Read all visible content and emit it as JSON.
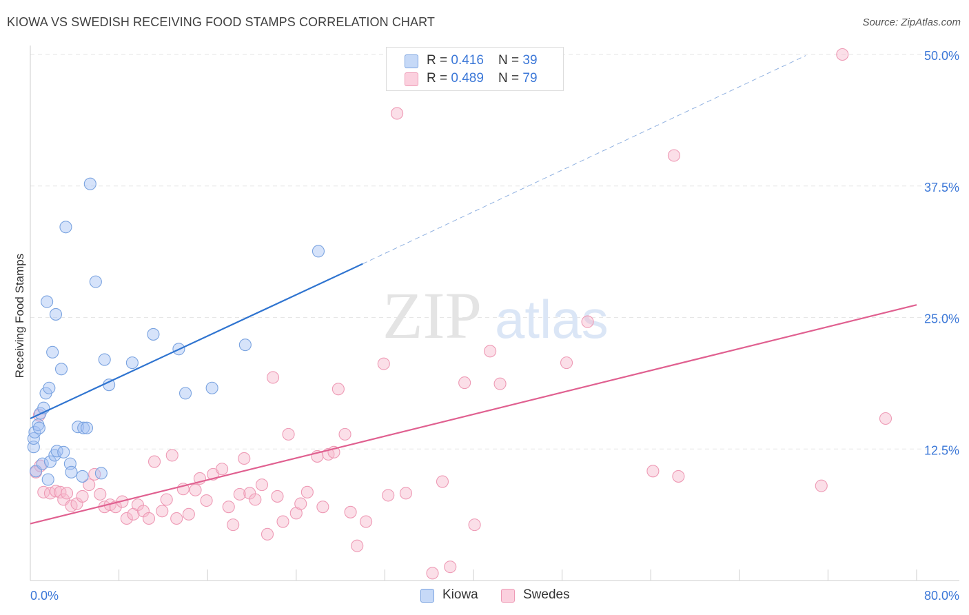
{
  "title": "KIOWA VS SWEDISH RECEIVING FOOD STAMPS CORRELATION CHART",
  "source": "Source: ZipAtlas.com",
  "watermark": {
    "zip": "ZIP",
    "atlas": "atlas"
  },
  "legend": {
    "rows": [
      {
        "r_label": "R = ",
        "r_value": "0.416",
        "n_label": "N = ",
        "n_value": "39"
      },
      {
        "r_label": "R = ",
        "r_value": "0.489",
        "n_label": "N = ",
        "n_value": "79"
      }
    ]
  },
  "bottom_legend": [
    {
      "label": "Kiowa"
    },
    {
      "label": "Swedes"
    }
  ],
  "colors": {
    "kiowa_fill": "#a4c2f4",
    "kiowa_stroke": "#7aa3e0",
    "kiowa_line": "#2f74d0",
    "swedes_fill": "#f7b8cc",
    "swedes_stroke": "#ee9ab5",
    "swedes_line": "#e06090",
    "tick_label": "#3c78d8",
    "grid": "#e6e6e6"
  },
  "chart_data": {
    "type": "scatter",
    "ylabel": "Receiving Food Stamps",
    "xlim": [
      0,
      80
    ],
    "ylim": [
      0,
      50
    ],
    "x_tick_labels": [
      {
        "v": 0,
        "label": "0.0%"
      },
      {
        "v": 80,
        "label": "80.0%"
      }
    ],
    "y_tick_labels": [
      {
        "v": 12.5,
        "label": "12.5%"
      },
      {
        "v": 25,
        "label": "25.0%"
      },
      {
        "v": 37.5,
        "label": "37.5%"
      },
      {
        "v": 50,
        "label": "50.0%"
      }
    ],
    "grid": true,
    "series": [
      {
        "name": "Kiowa",
        "points": [
          [
            0.3,
            12.7
          ],
          [
            0.3,
            13.5
          ],
          [
            0.4,
            14.1
          ],
          [
            0.5,
            10.4
          ],
          [
            0.7,
            14.8
          ],
          [
            0.8,
            14.5
          ],
          [
            0.9,
            15.9
          ],
          [
            1.1,
            11.1
          ],
          [
            1.2,
            16.4
          ],
          [
            1.4,
            17.8
          ],
          [
            1.5,
            26.5
          ],
          [
            1.6,
            9.6
          ],
          [
            1.7,
            18.3
          ],
          [
            1.8,
            11.3
          ],
          [
            2.0,
            21.7
          ],
          [
            2.2,
            11.9
          ],
          [
            2.3,
            25.3
          ],
          [
            2.4,
            12.3
          ],
          [
            2.8,
            20.1
          ],
          [
            3.0,
            12.2
          ],
          [
            3.2,
            33.6
          ],
          [
            3.6,
            11.1
          ],
          [
            3.7,
            10.3
          ],
          [
            4.3,
            14.6
          ],
          [
            4.7,
            9.9
          ],
          [
            4.8,
            14.5
          ],
          [
            5.1,
            14.5
          ],
          [
            5.4,
            37.7
          ],
          [
            5.9,
            28.4
          ],
          [
            6.4,
            10.2
          ],
          [
            6.7,
            21.0
          ],
          [
            7.1,
            18.6
          ],
          [
            9.2,
            20.7
          ],
          [
            11.1,
            23.4
          ],
          [
            13.4,
            22.0
          ],
          [
            14.0,
            17.8
          ],
          [
            16.4,
            18.3
          ],
          [
            19.4,
            22.4
          ],
          [
            26.0,
            31.3
          ]
        ],
        "trend": {
          "x": [
            0,
            30
          ],
          "y": [
            15.4,
            30.1
          ]
        },
        "trend_extension": {
          "x": [
            30,
            70
          ],
          "y": [
            30.1,
            49.9
          ]
        }
      },
      {
        "name": "Swedes",
        "points": [
          [
            0.5,
            10.3
          ],
          [
            0.8,
            15.7
          ],
          [
            1.2,
            8.4
          ],
          [
            1.8,
            8.3
          ],
          [
            2.3,
            8.5
          ],
          [
            2.7,
            8.4
          ],
          [
            3.0,
            7.7
          ],
          [
            3.3,
            8.3
          ],
          [
            3.7,
            7.1
          ],
          [
            4.2,
            7.3
          ],
          [
            4.7,
            8.0
          ],
          [
            5.3,
            9.1
          ],
          [
            5.8,
            10.1
          ],
          [
            6.3,
            8.2
          ],
          [
            6.7,
            7.0
          ],
          [
            7.2,
            7.2
          ],
          [
            7.7,
            7.0
          ],
          [
            8.3,
            7.5
          ],
          [
            8.7,
            5.9
          ],
          [
            9.3,
            6.3
          ],
          [
            9.7,
            7.2
          ],
          [
            10.2,
            6.6
          ],
          [
            10.7,
            5.9
          ],
          [
            11.2,
            11.3
          ],
          [
            11.9,
            6.6
          ],
          [
            12.3,
            7.7
          ],
          [
            12.8,
            11.9
          ],
          [
            13.2,
            5.9
          ],
          [
            13.8,
            8.7
          ],
          [
            14.3,
            6.3
          ],
          [
            14.9,
            8.6
          ],
          [
            15.3,
            9.7
          ],
          [
            15.9,
            7.6
          ],
          [
            16.5,
            10.1
          ],
          [
            17.3,
            10.6
          ],
          [
            17.9,
            7.0
          ],
          [
            18.3,
            5.3
          ],
          [
            18.9,
            8.2
          ],
          [
            19.3,
            11.6
          ],
          [
            19.8,
            8.3
          ],
          [
            20.3,
            7.7
          ],
          [
            20.9,
            9.1
          ],
          [
            21.4,
            4.4
          ],
          [
            21.9,
            19.3
          ],
          [
            22.3,
            8.0
          ],
          [
            22.8,
            5.6
          ],
          [
            23.3,
            13.9
          ],
          [
            24.0,
            6.4
          ],
          [
            24.4,
            7.3
          ],
          [
            25.0,
            8.4
          ],
          [
            25.9,
            11.8
          ],
          [
            26.4,
            7.0
          ],
          [
            26.9,
            12.0
          ],
          [
            27.4,
            12.2
          ],
          [
            27.8,
            18.2
          ],
          [
            28.4,
            13.9
          ],
          [
            28.9,
            6.5
          ],
          [
            29.5,
            3.3
          ],
          [
            30.3,
            5.6
          ],
          [
            31.9,
            20.6
          ],
          [
            32.3,
            8.1
          ],
          [
            33.1,
            44.4
          ],
          [
            33.9,
            8.3
          ],
          [
            36.3,
            0.7
          ],
          [
            37.2,
            9.4
          ],
          [
            37.9,
            1.3
          ],
          [
            39.2,
            18.8
          ],
          [
            40.1,
            5.3
          ],
          [
            41.5,
            21.8
          ],
          [
            42.4,
            18.7
          ],
          [
            48.4,
            20.7
          ],
          [
            50.3,
            24.6
          ],
          [
            56.2,
            10.4
          ],
          [
            58.1,
            40.4
          ],
          [
            58.5,
            9.9
          ],
          [
            71.4,
            9.0
          ],
          [
            73.3,
            50.0
          ],
          [
            77.2,
            15.4
          ],
          [
            0.9,
            10.9
          ]
        ],
        "trend": {
          "x": [
            0,
            80
          ],
          "y": [
            5.4,
            26.2
          ]
        }
      }
    ]
  }
}
